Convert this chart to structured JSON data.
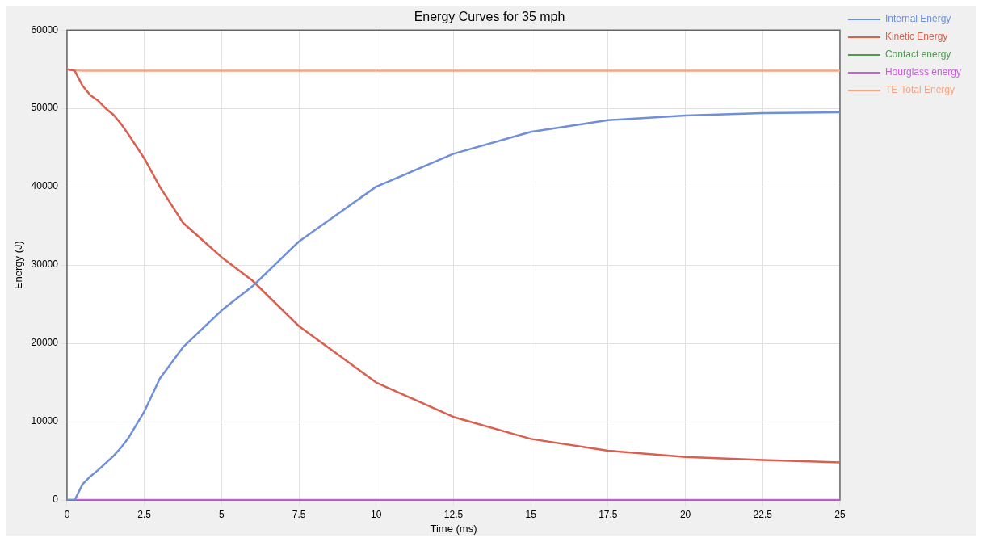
{
  "chart_data": {
    "type": "line",
    "title": "Energy Curves for 35 mph",
    "xlabel": "Time (ms)",
    "ylabel": "Energy (J)",
    "xlim": [
      0,
      25
    ],
    "xticks": [
      0,
      2.5,
      5,
      7.5,
      10,
      12.5,
      15,
      17.5,
      20,
      22.5,
      25
    ],
    "ylim": [
      0,
      60000
    ],
    "yticks": [
      0,
      10000,
      20000,
      30000,
      40000,
      50000,
      60000
    ],
    "grid": true,
    "legend": "top right",
    "marker": "none",
    "line_style": "solid",
    "x": [
      0,
      0.25,
      0.5,
      0.75,
      1,
      1.25,
      1.5,
      1.75,
      2,
      2.5,
      3,
      3.75,
      5,
      6,
      7.5,
      10,
      12.5,
      15,
      17.5,
      20,
      22.5,
      25
    ],
    "series": [
      {
        "name": "Internal Energy",
        "color": "#6f8fd9",
        "values": [
          0,
          0,
          2000,
          3000,
          3800,
          4700,
          5600,
          6700,
          8000,
          11300,
          15500,
          19500,
          24200,
          27300,
          33000,
          40000,
          44200,
          47000,
          48500,
          49100,
          49400,
          49500
        ]
      },
      {
        "name": "Kinetic Energy",
        "color": "#d95f4f",
        "values": [
          55000,
          54800,
          52900,
          51700,
          51000,
          50000,
          49200,
          48000,
          46600,
          43600,
          40000,
          35400,
          31000,
          28000,
          22200,
          15000,
          10600,
          7800,
          6300,
          5500,
          5100,
          4800
        ]
      },
      {
        "name": "Contact energy",
        "color": "#4f9a4f",
        "values": [
          null,
          null,
          null,
          null,
          null,
          null,
          null,
          null,
          null,
          null,
          null,
          null,
          null,
          null,
          null,
          null,
          null,
          null,
          null,
          null,
          null,
          null
        ]
      },
      {
        "name": "Hourglass energy",
        "color": "#c65fd9",
        "values": [
          0,
          0,
          0,
          0,
          0,
          0,
          0,
          0,
          0,
          0,
          0,
          0,
          0,
          0,
          0,
          0,
          0,
          0,
          0,
          0,
          0,
          0
        ]
      },
      {
        "name": "TE-Total Energy",
        "color": "#f5a585",
        "values": [
          55000,
          54900,
          54800,
          54800,
          54800,
          54800,
          54800,
          54800,
          54800,
          54800,
          54800,
          54800,
          54800,
          54800,
          54800,
          54800,
          54800,
          54800,
          54800,
          54800,
          54800,
          54800
        ]
      }
    ]
  }
}
